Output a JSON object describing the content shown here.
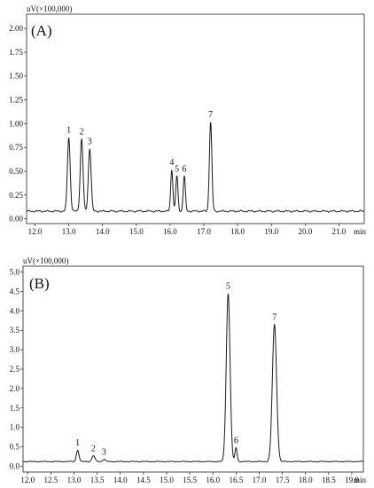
{
  "chart_data": [
    {
      "type": "line",
      "panel_label": "(A)",
      "ylabel": "uV(×100,000)",
      "xlabel": "min",
      "xlim": [
        11.75,
        21.75
      ],
      "ylim": [
        -0.05,
        2.15
      ],
      "x_ticks": [
        "12.0",
        "13.0",
        "14.0",
        "15.0",
        "16.0",
        "17.0",
        "18.0",
        "19.0",
        "20.0",
        "21.0"
      ],
      "y_ticks": [
        "0.00",
        "0.25",
        "0.50",
        "0.75",
        "1.00",
        "1.25",
        "1.50",
        "1.75",
        "2.00"
      ],
      "baseline": 0.08,
      "peaks": [
        {
          "label": "1",
          "x": 13.0,
          "y": 0.86,
          "width": 0.09
        },
        {
          "label": "2",
          "x": 13.38,
          "y": 0.84,
          "width": 0.09
        },
        {
          "label": "3",
          "x": 13.62,
          "y": 0.74,
          "width": 0.09
        },
        {
          "label": "4",
          "x": 16.05,
          "y": 0.52,
          "width": 0.07
        },
        {
          "label": "5",
          "x": 16.2,
          "y": 0.45,
          "width": 0.07
        },
        {
          "label": "6",
          "x": 16.42,
          "y": 0.45,
          "width": 0.07
        },
        {
          "label": "7",
          "x": 17.2,
          "y": 1.02,
          "width": 0.08
        }
      ]
    },
    {
      "type": "line",
      "panel_label": "(B)",
      "ylabel": "uV(×100,000)",
      "xlabel": "min",
      "xlim": [
        11.9,
        19.25
      ],
      "ylim": [
        -0.15,
        5.15
      ],
      "x_ticks": [
        "12.0",
        "12.5",
        "13.0",
        "13.5",
        "14.0",
        "14.5",
        "15.0",
        "15.5",
        "16.0",
        "16.5",
        "17.0",
        "17.5",
        "18.0",
        "18.5",
        "19.0"
      ],
      "y_ticks": [
        "0.0",
        "0.5",
        "1.0",
        "1.5",
        "2.0",
        "2.5",
        "3.0",
        "3.5",
        "4.0",
        "4.5",
        "5.0"
      ],
      "baseline": 0.12,
      "peaks": [
        {
          "label": "1",
          "x": 13.08,
          "y": 0.42,
          "width": 0.06
        },
        {
          "label": "2",
          "x": 13.42,
          "y": 0.27,
          "width": 0.07
        },
        {
          "label": "3",
          "x": 13.65,
          "y": 0.18,
          "width": 0.06
        },
        {
          "label": "5",
          "x": 16.33,
          "y": 4.45,
          "width": 0.09
        },
        {
          "label": "6",
          "x": 16.5,
          "y": 0.48,
          "width": 0.05
        },
        {
          "label": "7",
          "x": 17.33,
          "y": 3.65,
          "width": 0.1
        }
      ]
    }
  ]
}
